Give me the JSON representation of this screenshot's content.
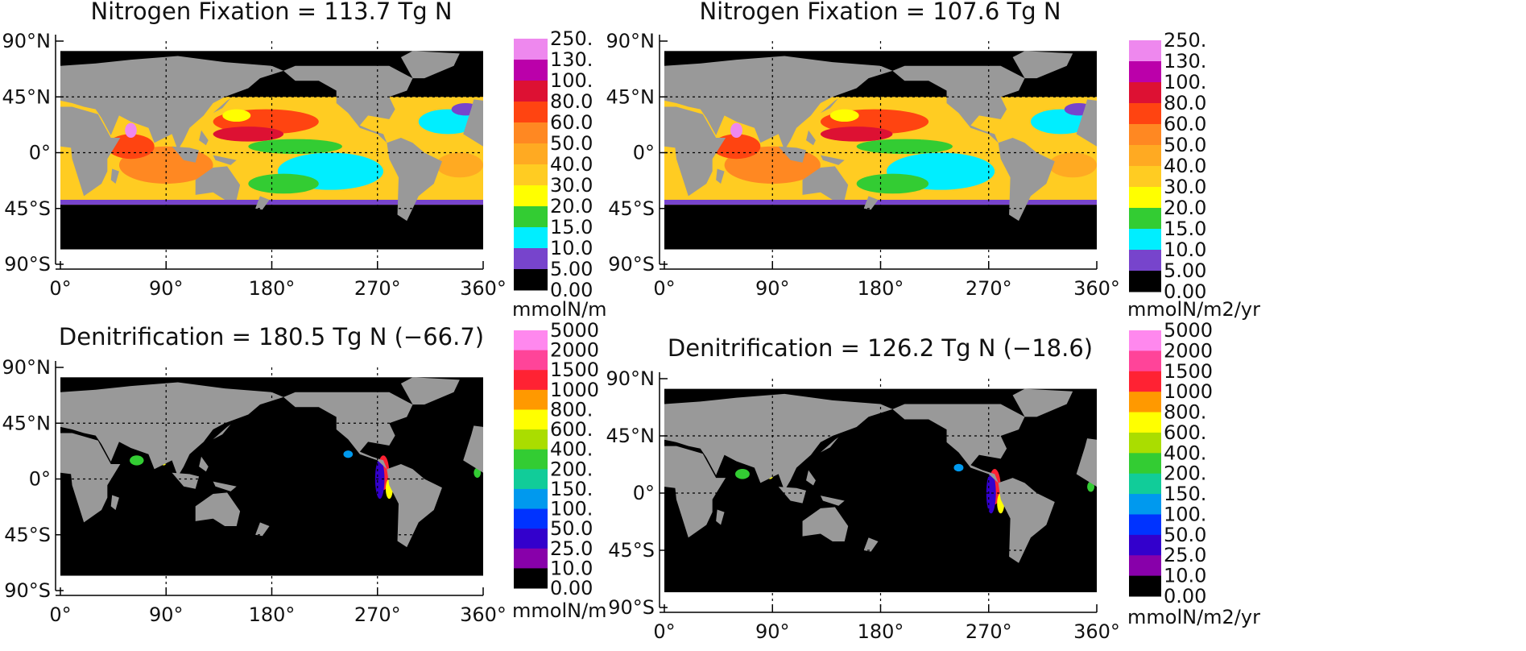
{
  "map_axes": {
    "lon_labels": [
      "0°",
      "90°",
      "180°",
      "270°",
      "360°"
    ],
    "lat_labels": [
      "90°N",
      "45°N",
      "0°",
      "45°S",
      "90°S"
    ]
  },
  "panels": [
    {
      "title": "Nitrogen Fixation = 113.7 Tg N",
      "colorbar": {
        "labels": [
          "250.",
          "130.",
          "100.",
          "80.0",
          "60.0",
          "50.0",
          "40.0",
          "30.0",
          "20.0",
          "15.0",
          "10.0",
          "5.00",
          "0.00"
        ],
        "colors": [
          "#ee88ee",
          "#bb00aa",
          "#dd1133",
          "#ff4411",
          "#ff8822",
          "#ffaa22",
          "#ffcc22",
          "#ffff00",
          "#33cc33",
          "#00eeff",
          "#7744cc",
          "#000000"
        ],
        "unit": "mmolN/m"
      }
    },
    {
      "title": "Nitrogen Fixation = 107.6 Tg N",
      "colorbar": {
        "labels": [
          "250.",
          "130.",
          "100.",
          "80.0",
          "60.0",
          "50.0",
          "40.0",
          "30.0",
          "20.0",
          "15.0",
          "10.0",
          "5.00",
          "0.00"
        ],
        "colors": [
          "#ee88ee",
          "#bb00aa",
          "#dd1133",
          "#ff4411",
          "#ff8822",
          "#ffaa22",
          "#ffcc22",
          "#ffff00",
          "#33cc33",
          "#00eeff",
          "#7744cc",
          "#000000"
        ],
        "unit": "mmolN/m2/yr"
      }
    },
    {
      "title": "Denitrification = 180.5 Tg N (−66.7)",
      "colorbar": {
        "labels": [
          "5000",
          "2000",
          "1500",
          "1000",
          "800.",
          "600.",
          "400.",
          "200.",
          "150.",
          "100.",
          "50.0",
          "25.0",
          "10.0",
          "0.00"
        ],
        "colors": [
          "#ff88ee",
          "#ff4499",
          "#ff2233",
          "#ff9900",
          "#ffff00",
          "#aadd00",
          "#33cc33",
          "#11cc99",
          "#0099ee",
          "#0033ff",
          "#3300cc",
          "#8800aa",
          "#000000"
        ],
        "unit": "mmolN/m"
      }
    },
    {
      "title": "Denitrification = 126.2 Tg N (−18.6)",
      "colorbar": {
        "labels": [
          "5000",
          "2000",
          "1500",
          "1000",
          "800.",
          "600.",
          "400.",
          "200.",
          "150.",
          "100.",
          "50.0",
          "25.0",
          "10.0",
          "0.00"
        ],
        "colors": [
          "#ff88ee",
          "#ff4499",
          "#ff2233",
          "#ff9900",
          "#ffff00",
          "#aadd00",
          "#33cc33",
          "#11cc99",
          "#0099ee",
          "#0033ff",
          "#3300cc",
          "#8800aa",
          "#000000"
        ],
        "unit": "mmolN/m2/yr"
      }
    }
  ]
}
